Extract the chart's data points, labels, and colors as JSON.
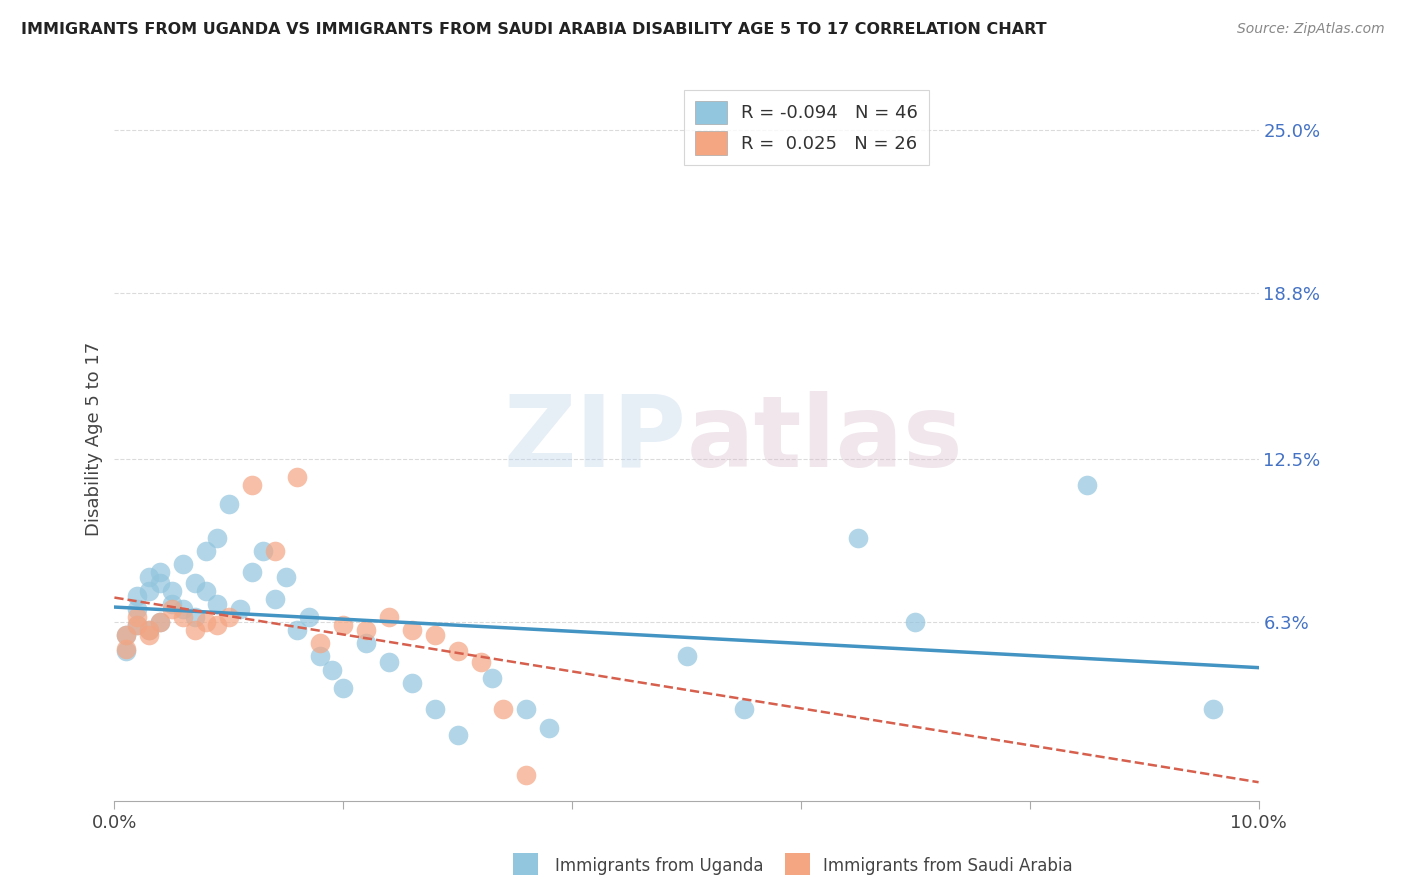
{
  "title": "IMMIGRANTS FROM UGANDA VS IMMIGRANTS FROM SAUDI ARABIA DISABILITY AGE 5 TO 17 CORRELATION CHART",
  "source": "Source: ZipAtlas.com",
  "ylabel": "Disability Age 5 to 17",
  "ytick_labels": [
    "6.3%",
    "12.5%",
    "18.8%",
    "25.0%"
  ],
  "ytick_values": [
    0.063,
    0.125,
    0.188,
    0.25
  ],
  "xlim": [
    0.0,
    0.1
  ],
  "ylim": [
    -0.005,
    0.27
  ],
  "legend_r1": "R = -0.094",
  "legend_n1": "N = 46",
  "legend_r2": "R =  0.025",
  "legend_n2": "N = 26",
  "color_uganda": "#92c5de",
  "color_saudi": "#f4a582",
  "color_trendline_uganda": "#4393c3",
  "color_trendline_saudi": "#d6604d",
  "watermark_zip": "ZIP",
  "watermark_atlas": "atlas",
  "uganda_x": [
    0.001,
    0.001,
    0.002,
    0.002,
    0.002,
    0.003,
    0.003,
    0.003,
    0.004,
    0.004,
    0.004,
    0.005,
    0.005,
    0.006,
    0.006,
    0.007,
    0.007,
    0.008,
    0.008,
    0.009,
    0.009,
    0.01,
    0.011,
    0.012,
    0.013,
    0.014,
    0.015,
    0.016,
    0.017,
    0.018,
    0.019,
    0.02,
    0.022,
    0.024,
    0.026,
    0.028,
    0.03,
    0.033,
    0.036,
    0.038,
    0.05,
    0.055,
    0.065,
    0.07,
    0.085,
    0.096
  ],
  "uganda_y": [
    0.058,
    0.052,
    0.062,
    0.068,
    0.073,
    0.06,
    0.075,
    0.08,
    0.063,
    0.078,
    0.082,
    0.07,
    0.075,
    0.085,
    0.068,
    0.078,
    0.065,
    0.09,
    0.075,
    0.07,
    0.095,
    0.108,
    0.068,
    0.082,
    0.09,
    0.072,
    0.08,
    0.06,
    0.065,
    0.05,
    0.045,
    0.038,
    0.055,
    0.048,
    0.04,
    0.03,
    0.02,
    0.042,
    0.03,
    0.023,
    0.05,
    0.03,
    0.095,
    0.063,
    0.115,
    0.03
  ],
  "saudi_x": [
    0.001,
    0.001,
    0.002,
    0.002,
    0.003,
    0.003,
    0.004,
    0.005,
    0.006,
    0.007,
    0.008,
    0.009,
    0.01,
    0.012,
    0.014,
    0.016,
    0.018,
    0.02,
    0.022,
    0.024,
    0.026,
    0.028,
    0.03,
    0.032,
    0.034,
    0.036
  ],
  "saudi_y": [
    0.058,
    0.053,
    0.062,
    0.065,
    0.06,
    0.058,
    0.063,
    0.068,
    0.065,
    0.06,
    0.063,
    0.062,
    0.065,
    0.115,
    0.09,
    0.118,
    0.055,
    0.062,
    0.06,
    0.065,
    0.06,
    0.058,
    0.052,
    0.048,
    0.03,
    0.005
  ]
}
